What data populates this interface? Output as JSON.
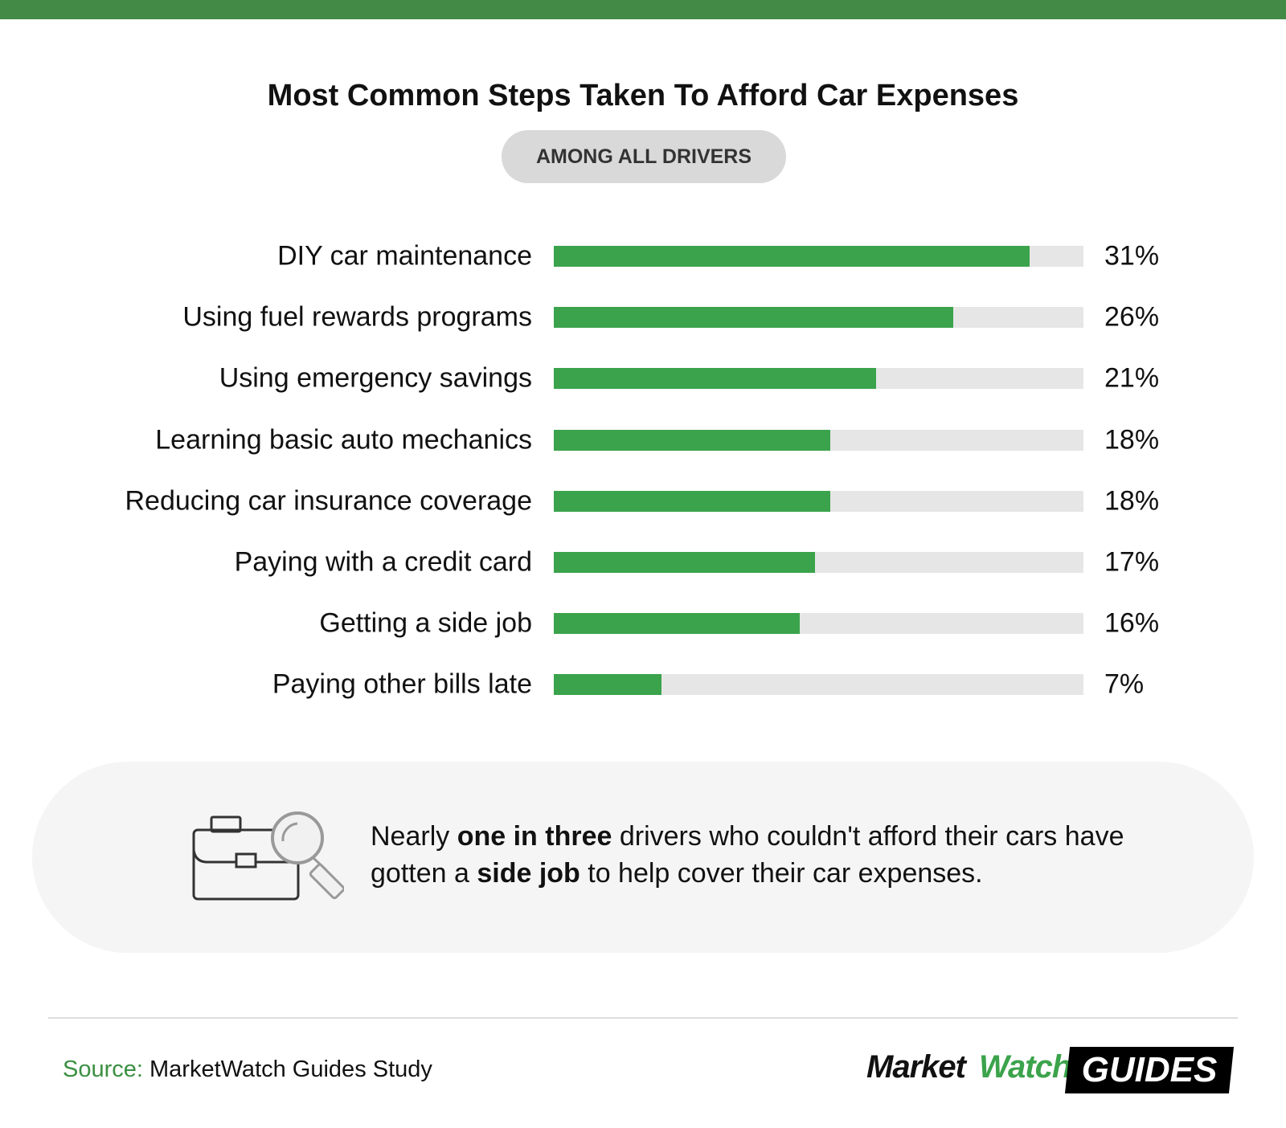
{
  "title": "Most Common Steps Taken To Afford Car Expenses",
  "subtitle": "AMONG ALL DRIVERS",
  "chart_data": {
    "type": "bar",
    "orientation": "horizontal",
    "title": "Most Common Steps Taken To Afford Car Expenses",
    "subtitle": "AMONG ALL DRIVERS",
    "categories": [
      "DIY car maintenance",
      "Using fuel rewards programs",
      "Using emergency savings",
      "Learning basic auto mechanics",
      "Reducing car insurance coverage",
      "Paying with a credit card",
      "Getting a side job",
      "Paying other bills late"
    ],
    "values": [
      31,
      26,
      21,
      18,
      18,
      17,
      16,
      7
    ],
    "value_labels": [
      "31%",
      "26%",
      "21%",
      "18%",
      "18%",
      "17%",
      "16%",
      "7%"
    ],
    "unit": "%",
    "xlim": [
      0,
      34.5
    ],
    "grid": false,
    "colors": {
      "bar": "#3ba34b",
      "track": "#e6e6e6"
    }
  },
  "callout": {
    "icon": "briefcase-magnifier-icon",
    "text_1": "Nearly ",
    "bold_1": "one in three",
    "text_2": " drivers who couldn't afford their cars have gotten a ",
    "bold_2": "side job",
    "text_3": " to help cover their car expenses."
  },
  "footer": {
    "source_label": "Source:",
    "source_text": " MarketWatch Guides Study",
    "logo": {
      "part1": "Market",
      "part2": "Watch",
      "part3": "GUIDES"
    }
  },
  "colors": {
    "accent": "#428a45",
    "brand_green": "#3ba34b"
  }
}
